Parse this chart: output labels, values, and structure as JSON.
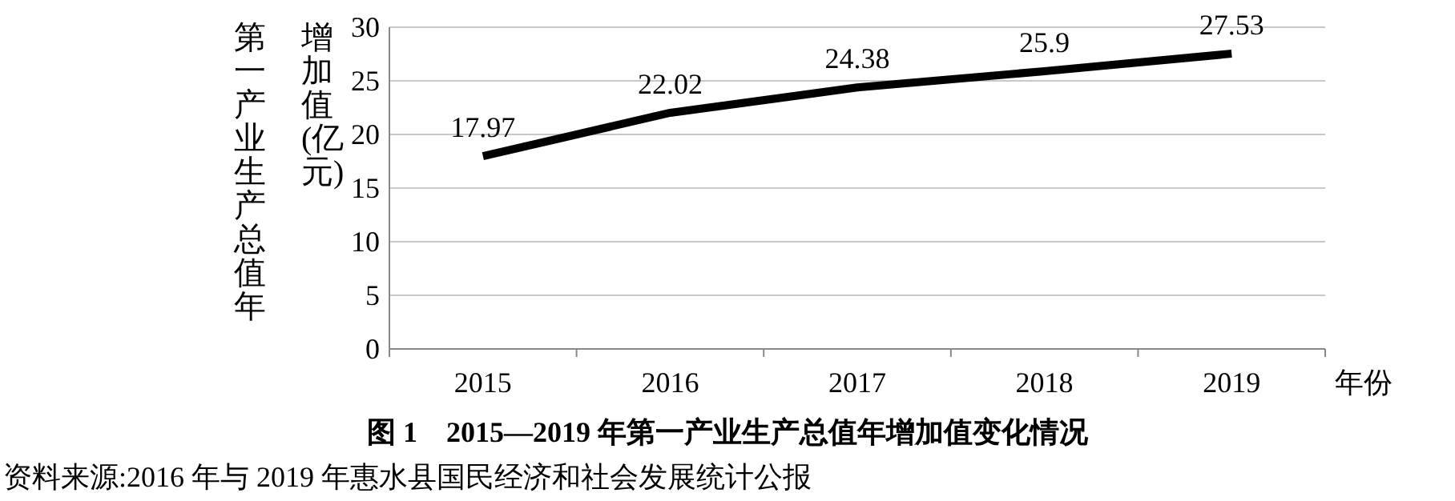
{
  "chart_data": {
    "type": "line",
    "title": "图 1　2015—2019 年第一产业生产总值年增加值变化情况",
    "ylabel": "第一产业生产总值年增加值(亿元)",
    "xlabel": "年份",
    "annotations": [
      "资料来源:2016 年与 2019 年惠水县国民经济和社会发展统计公报"
    ],
    "categories": [
      "2015",
      "2016",
      "2017",
      "2018",
      "2019"
    ],
    "series": [
      {
        "color": "#000000",
        "values": [
          17.97,
          22.02,
          24.38,
          25.9,
          27.53
        ]
      }
    ],
    "ylim": [
      0,
      30
    ],
    "yticks": [
      0,
      5,
      10,
      15,
      20,
      25,
      30
    ],
    "grid": "y",
    "data_labels": true,
    "marker": "none",
    "line_style": "solid"
  }
}
